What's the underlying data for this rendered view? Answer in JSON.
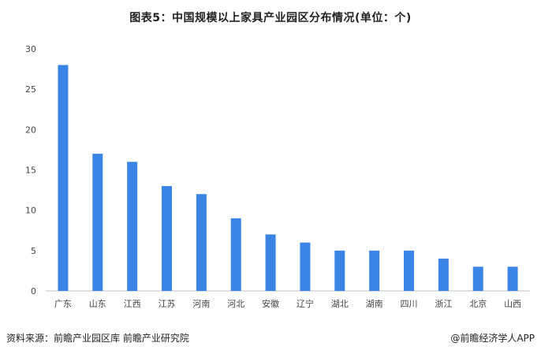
{
  "title": "图表5：中国规模以上家具产业园区分布情况(单位：个)",
  "footer": {
    "source": "资料来源：前瞻产业园区库 前瞻产业研究院",
    "brand": "@前瞻经济学人APP"
  },
  "colors": {
    "bar": "#3a84e6",
    "axis": "#bfbfbf"
  },
  "chart_data": {
    "type": "bar",
    "title": "图表5：中国规模以上家具产业园区分布情况(单位：个)",
    "xlabel": "",
    "ylabel": "",
    "ylim": [
      0,
      30
    ],
    "yticks": [
      0,
      5,
      10,
      15,
      20,
      25,
      30
    ],
    "grid": false,
    "legend": "none",
    "categories": [
      "广东",
      "山东",
      "江西",
      "江苏",
      "河南",
      "河北",
      "安徽",
      "辽宁",
      "湖北",
      "湖南",
      "四川",
      "浙江",
      "北京",
      "山西"
    ],
    "values": [
      28,
      17,
      16,
      13,
      12,
      9,
      7,
      6,
      5,
      5,
      5,
      4,
      3,
      3
    ]
  }
}
